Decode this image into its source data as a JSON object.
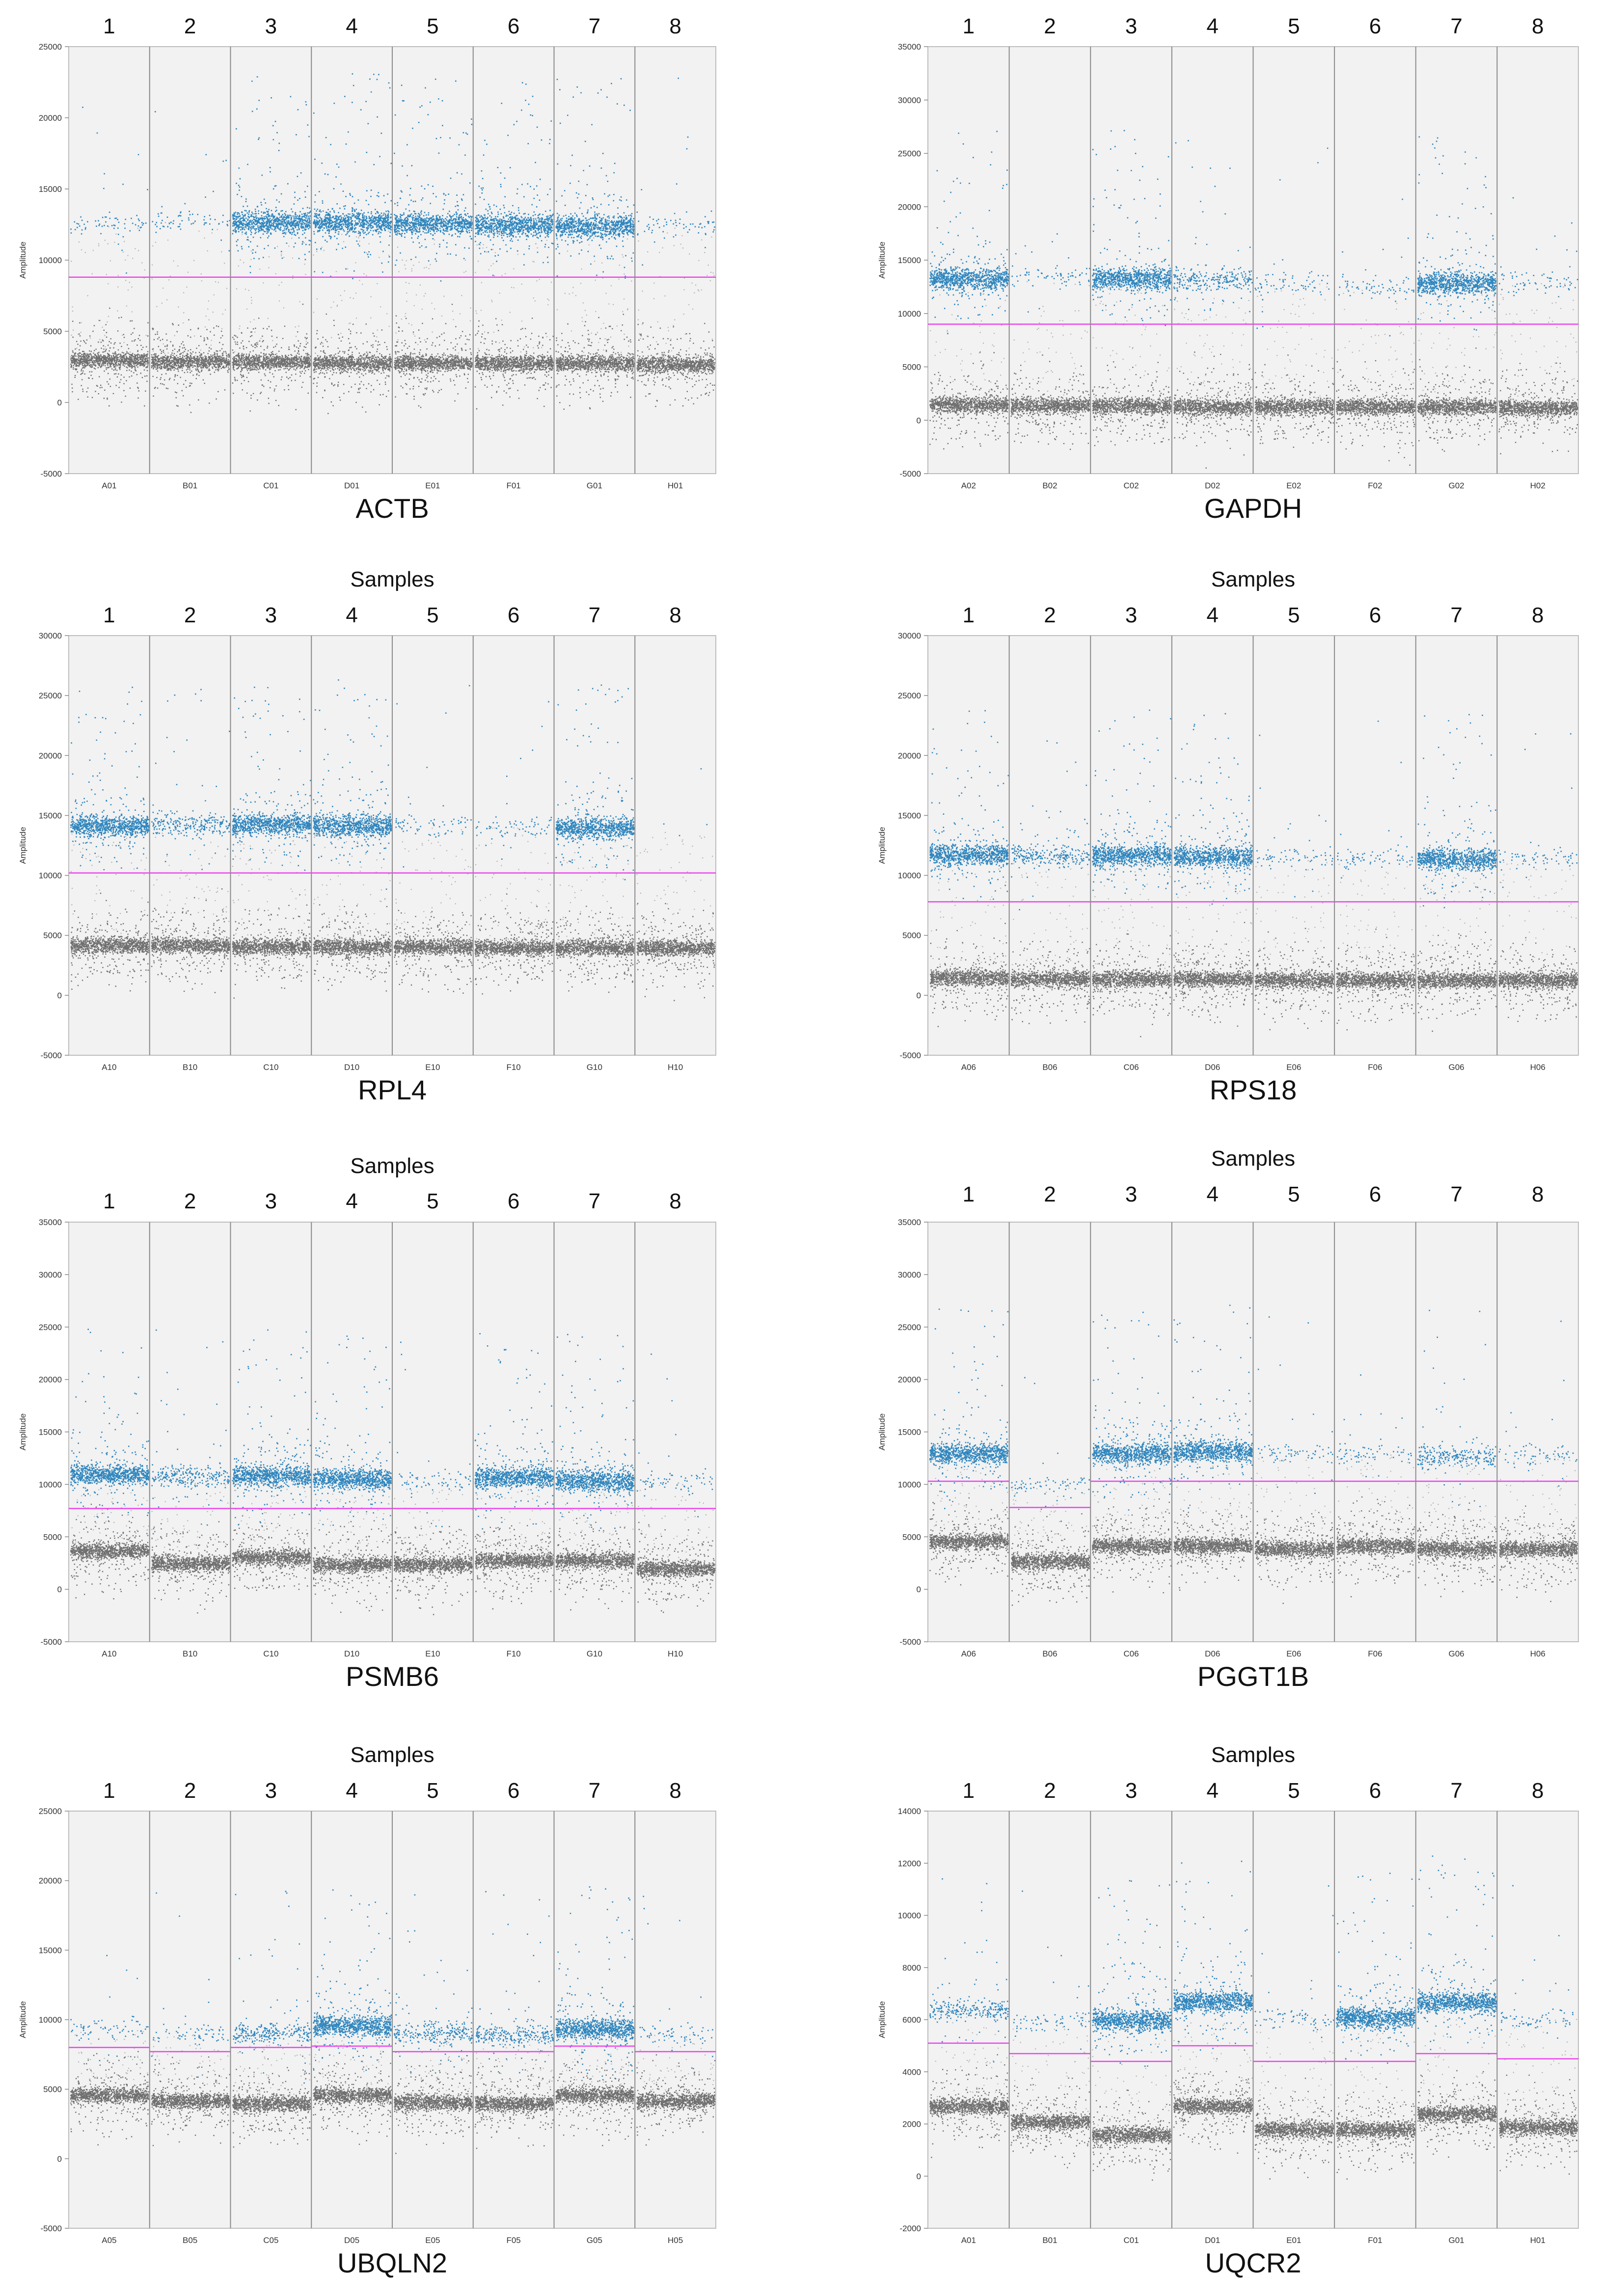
{
  "figure": {
    "colors": {
      "positive": "#1a7ab8",
      "negative": "#4d4d4d",
      "threshold": "#ee44ee",
      "plot_bg": "#f2f2f2",
      "divider": "#8a8a8a",
      "frame": "#bdbdbd"
    }
  },
  "chart_data": [
    {
      "type": "scatter",
      "title": "ACTB",
      "header": "",
      "ylabel": "Amplitude",
      "ylim": [
        -5000,
        25000
      ],
      "yticks": [
        -5000,
        0,
        5000,
        10000,
        15000,
        20000,
        25000
      ],
      "sample_numbers": [
        "1",
        "2",
        "3",
        "4",
        "5",
        "6",
        "7",
        "8"
      ],
      "wells": [
        "A01",
        "B01",
        "C01",
        "D01",
        "E01",
        "F01",
        "G01",
        "H01"
      ],
      "positive_amplitude": [
        12600,
        12800,
        12700,
        12700,
        12600,
        12500,
        12400,
        12500
      ],
      "positive_density": [
        "low",
        "low",
        "high",
        "high",
        "high",
        "high",
        "high",
        "low"
      ],
      "negative_amplitude": [
        3000,
        2900,
        2900,
        2800,
        2800,
        2800,
        2800,
        2700
      ],
      "threshold": [
        8800,
        8800,
        8800,
        8800,
        8800,
        8800,
        8800,
        8800
      ]
    },
    {
      "type": "scatter",
      "title": "GAPDH",
      "header": "",
      "ylabel": "Amplitude",
      "ylim": [
        -5000,
        35000
      ],
      "yticks": [
        -5000,
        0,
        5000,
        10000,
        15000,
        20000,
        25000,
        30000,
        35000
      ],
      "sample_numbers": [
        "1",
        "2",
        "3",
        "4",
        "5",
        "6",
        "7",
        "8"
      ],
      "wells": [
        "A02",
        "B02",
        "C02",
        "D02",
        "E02",
        "F02",
        "G02",
        "H02"
      ],
      "positive_amplitude": [
        13300,
        13500,
        13300,
        13200,
        12900,
        12500,
        12900,
        13000
      ],
      "positive_density": [
        "high",
        "low",
        "high",
        "medium",
        "low",
        "low",
        "high",
        "low"
      ],
      "negative_amplitude": [
        1500,
        1400,
        1400,
        1300,
        1300,
        1300,
        1300,
        1200
      ],
      "threshold": [
        9000,
        9000,
        9000,
        9000,
        9000,
        9000,
        9000,
        9000
      ]
    },
    {
      "type": "scatter",
      "title": "RPL4",
      "header": "Samples",
      "ylabel": "Amplitude",
      "ylim": [
        -5000,
        30000
      ],
      "yticks": [
        -5000,
        0,
        5000,
        10000,
        15000,
        20000,
        25000,
        30000
      ],
      "sample_numbers": [
        "1",
        "2",
        "3",
        "4",
        "5",
        "6",
        "7",
        "8"
      ],
      "wells": [
        "A10",
        "B10",
        "C10",
        "D10",
        "E10",
        "F10",
        "G10",
        "H10"
      ],
      "positive_amplitude": [
        14200,
        14300,
        14300,
        14200,
        14200,
        14100,
        14000,
        14000
      ],
      "positive_density": [
        "high",
        "medium",
        "high",
        "high",
        "low",
        "low",
        "high",
        "none"
      ],
      "negative_amplitude": [
        4200,
        4200,
        4100,
        4100,
        4100,
        4000,
        4000,
        4000
      ],
      "threshold": [
        10200,
        10200,
        10200,
        10200,
        10200,
        10200,
        10200,
        10200
      ]
    },
    {
      "type": "scatter",
      "title": "RPS18",
      "header": "Samples",
      "ylabel": "Amplitude",
      "ylim": [
        -5000,
        30000
      ],
      "yticks": [
        -5000,
        0,
        5000,
        10000,
        15000,
        20000,
        25000,
        30000
      ],
      "sample_numbers": [
        "1",
        "2",
        "3",
        "4",
        "5",
        "6",
        "7",
        "8"
      ],
      "wells": [
        "A06",
        "B06",
        "C06",
        "D06",
        "E06",
        "F06",
        "G06",
        "H06"
      ],
      "positive_amplitude": [
        11800,
        11700,
        11700,
        11600,
        11500,
        11400,
        11400,
        11400
      ],
      "positive_density": [
        "high",
        "medium",
        "high",
        "high",
        "low",
        "low",
        "high",
        "low"
      ],
      "negative_amplitude": [
        1500,
        1400,
        1400,
        1400,
        1300,
        1300,
        1300,
        1300
      ],
      "threshold": [
        7800,
        7800,
        7800,
        7800,
        7800,
        7800,
        7800,
        7800
      ]
    },
    {
      "type": "scatter",
      "title": "PSMB6",
      "header": "Samples",
      "ylabel": "Amplitude",
      "ylim": [
        -5000,
        35000
      ],
      "yticks": [
        -5000,
        0,
        5000,
        10000,
        15000,
        20000,
        25000,
        30000,
        35000
      ],
      "sample_numbers": [
        "1",
        "2",
        "3",
        "4",
        "5",
        "6",
        "7",
        "8"
      ],
      "wells": [
        "A10",
        "B10",
        "C10",
        "D10",
        "E10",
        "F10",
        "G10",
        "H10"
      ],
      "positive_amplitude": [
        11000,
        10800,
        10900,
        10600,
        10400,
        10700,
        10400,
        10300
      ],
      "positive_density": [
        "high",
        "medium",
        "high",
        "high",
        "low",
        "high",
        "high",
        "low"
      ],
      "negative_amplitude": [
        3700,
        2500,
        3100,
        2400,
        2400,
        2800,
        2800,
        2000
      ],
      "threshold": [
        7700,
        7700,
        7700,
        7700,
        7700,
        7700,
        7700,
        7700
      ]
    },
    {
      "type": "scatter",
      "title": "PGGT1B",
      "header": "Samples",
      "ylabel": "Amplitude",
      "ylim": [
        -5000,
        35000
      ],
      "yticks": [
        -5000,
        0,
        5000,
        10000,
        15000,
        20000,
        25000,
        30000,
        35000
      ],
      "sample_numbers": [
        "1",
        "2",
        "3",
        "4",
        "5",
        "6",
        "7",
        "8"
      ],
      "wells": [
        "A06",
        "B06",
        "C06",
        "D06",
        "E06",
        "F06",
        "G06",
        "H06"
      ],
      "positive_amplitude": [
        13000,
        9900,
        13000,
        13200,
        13000,
        13000,
        12700,
        12800
      ],
      "positive_density": [
        "high",
        "low",
        "high",
        "high",
        "low",
        "low",
        "medium",
        "low"
      ],
      "negative_amplitude": [
        4600,
        2700,
        4200,
        4200,
        3900,
        4200,
        3900,
        3900
      ],
      "threshold": [
        10300,
        7800,
        10300,
        10300,
        10300,
        10300,
        10300,
        10300
      ]
    },
    {
      "type": "scatter",
      "title": "UBQLN2",
      "header": "Samples",
      "ylabel": "Amplitude",
      "ylim": [
        -5000,
        25000
      ],
      "yticks": [
        -5000,
        0,
        5000,
        10000,
        15000,
        20000,
        25000
      ],
      "sample_numbers": [
        "1",
        "2",
        "3",
        "4",
        "5",
        "6",
        "7",
        "8"
      ],
      "wells": [
        "A05",
        "B05",
        "C05",
        "D05",
        "E05",
        "F05",
        "G05",
        "H05"
      ],
      "positive_amplitude": [
        9400,
        9000,
        9100,
        9600,
        9100,
        8900,
        9400,
        9000
      ],
      "positive_density": [
        "low",
        "low",
        "medium",
        "high",
        "medium",
        "medium",
        "high",
        "low"
      ],
      "negative_amplitude": [
        4600,
        4200,
        4000,
        4600,
        4100,
        4000,
        4600,
        4200
      ],
      "threshold": [
        8000,
        7700,
        8000,
        8100,
        7700,
        7700,
        8100,
        7700
      ]
    },
    {
      "type": "scatter",
      "title": "UQCR2",
      "header": "Samples",
      "ylabel": "Amplitude",
      "ylim": [
        -2000,
        14000
      ],
      "yticks": [
        -2000,
        0,
        2000,
        4000,
        6000,
        8000,
        10000,
        12000,
        14000
      ],
      "sample_numbers": [
        "1",
        "2",
        "3",
        "4",
        "5",
        "6",
        "7",
        "8"
      ],
      "wells": [
        "A01",
        "B01",
        "C01",
        "D01",
        "E01",
        "F01",
        "G01",
        "H01"
      ],
      "positive_amplitude": [
        6400,
        6000,
        6000,
        6700,
        6100,
        6100,
        6700,
        6100
      ],
      "positive_density": [
        "medium",
        "low",
        "high",
        "high",
        "low",
        "high",
        "high",
        "low"
      ],
      "negative_amplitude": [
        2700,
        2100,
        1600,
        2700,
        1800,
        1800,
        2400,
        1900
      ],
      "threshold": [
        5100,
        4700,
        4400,
        5000,
        4400,
        4400,
        4700,
        4500
      ]
    }
  ]
}
